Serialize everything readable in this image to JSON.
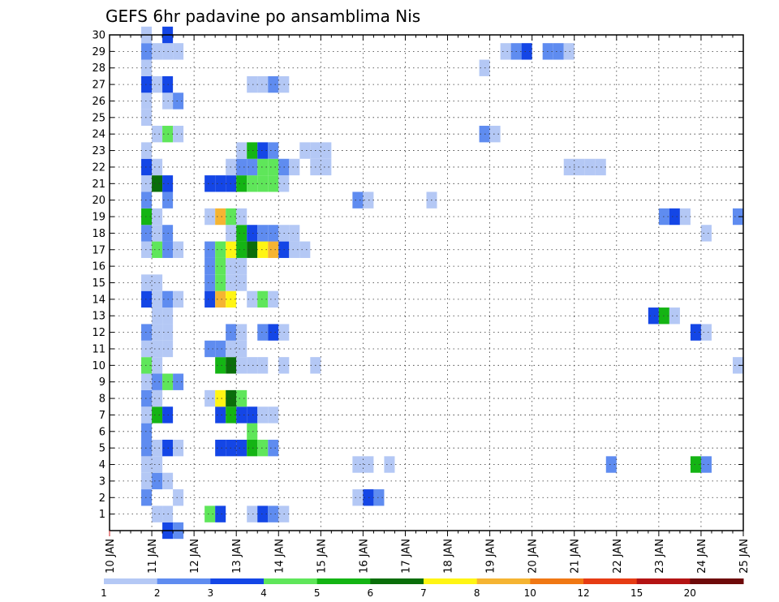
{
  "chart_data": {
    "type": "heatmap",
    "title": "GEFS 6hr padavine po ansamblima Nis",
    "x_ticks": [
      "10 JAN",
      "11 JAN",
      "12 JAN",
      "13 JAN",
      "14 JAN",
      "15 JAN",
      "16 JAN",
      "17 JAN",
      "18 JAN",
      "19 JAN",
      "20 JAN",
      "21 JAN",
      "22 JAN",
      "23 JAN",
      "24 JAN",
      "25 JAN"
    ],
    "y_ticks": [
      "1",
      "2",
      "3",
      "4",
      "5",
      "6",
      "7",
      "8",
      "9",
      "10",
      "11",
      "12",
      "13",
      "14",
      "15",
      "16",
      "17",
      "18",
      "19",
      "20",
      "21",
      "22",
      "23",
      "24",
      "25",
      "26",
      "27",
      "28",
      "29",
      "30"
    ],
    "x_range_days": [
      10,
      25
    ],
    "y_range": [
      0,
      30
    ],
    "grid": true,
    "color_levels": [
      1,
      2,
      3,
      4,
      5,
      6,
      7,
      8,
      10,
      12,
      15,
      20
    ],
    "color_labels": [
      "1",
      "2",
      "3",
      "4",
      "5",
      "6",
      "7",
      "8",
      "10",
      "12",
      "15",
      "20"
    ],
    "colors": [
      "#b4c8f5",
      "#5f8cf0",
      "#1446e6",
      "#5fe65a",
      "#14b414",
      "#0a6e0a",
      "#fff514",
      "#f5b432",
      "#f07814",
      "#e63c14",
      "#b41414",
      "#6e0a0a"
    ],
    "members": [
      {
        "member": 0,
        "cells": [
          [
            11.25,
            2
          ],
          [
            11.5,
            1
          ]
        ]
      },
      {
        "member": 1,
        "cells": [
          [
            11.0,
            0
          ],
          [
            11.25,
            0
          ],
          [
            12.25,
            3
          ],
          [
            12.5,
            2
          ],
          [
            13.25,
            0
          ],
          [
            13.5,
            2
          ],
          [
            13.75,
            1
          ],
          [
            14.0,
            0
          ]
        ]
      },
      {
        "member": 2,
        "cells": [
          [
            10.75,
            1
          ],
          [
            11.5,
            0
          ],
          [
            15.75,
            0
          ],
          [
            16.0,
            2
          ],
          [
            16.25,
            1
          ]
        ]
      },
      {
        "member": 3,
        "cells": [
          [
            10.75,
            0
          ],
          [
            11.0,
            1
          ],
          [
            11.25,
            0
          ]
        ]
      },
      {
        "member": 4,
        "cells": [
          [
            10.75,
            0
          ],
          [
            11.0,
            0
          ],
          [
            15.75,
            0
          ],
          [
            16.0,
            0
          ],
          [
            16.5,
            0
          ],
          [
            21.75,
            1
          ],
          [
            23.75,
            4
          ],
          [
            24.0,
            1
          ]
        ]
      },
      {
        "member": 5,
        "cells": [
          [
            10.75,
            1
          ],
          [
            11.0,
            0
          ],
          [
            11.25,
            2
          ],
          [
            11.5,
            0
          ],
          [
            12.5,
            2
          ],
          [
            12.75,
            2
          ],
          [
            13.0,
            2
          ],
          [
            13.25,
            4
          ],
          [
            13.5,
            3
          ],
          [
            13.75,
            1
          ]
        ]
      },
      {
        "member": 6,
        "cells": [
          [
            10.75,
            1
          ],
          [
            13.25,
            3
          ]
        ]
      },
      {
        "member": 7,
        "cells": [
          [
            10.75,
            0
          ],
          [
            11.0,
            4
          ],
          [
            11.25,
            2
          ],
          [
            12.5,
            2
          ],
          [
            12.75,
            4
          ],
          [
            13.0,
            2
          ],
          [
            13.25,
            2
          ],
          [
            13.5,
            0
          ],
          [
            13.75,
            0
          ]
        ]
      },
      {
        "member": 8,
        "cells": [
          [
            10.75,
            1
          ],
          [
            11.0,
            0
          ],
          [
            12.25,
            0
          ],
          [
            12.5,
            6
          ],
          [
            12.75,
            5
          ],
          [
            13.0,
            3
          ]
        ]
      },
      {
        "member": 9,
        "cells": [
          [
            10.75,
            0
          ],
          [
            11.0,
            1
          ],
          [
            11.25,
            3
          ],
          [
            11.5,
            1
          ]
        ]
      },
      {
        "member": 10,
        "cells": [
          [
            10.75,
            3
          ],
          [
            11.0,
            0
          ],
          [
            12.5,
            4
          ],
          [
            12.75,
            5
          ],
          [
            13.0,
            0
          ],
          [
            13.25,
            0
          ],
          [
            13.5,
            0
          ],
          [
            14.0,
            0
          ],
          [
            14.75,
            0
          ],
          [
            24.75,
            0
          ]
        ]
      },
      {
        "member": 11,
        "cells": [
          [
            10.75,
            0
          ],
          [
            11.0,
            0
          ],
          [
            11.25,
            0
          ],
          [
            12.25,
            1
          ],
          [
            12.5,
            1
          ],
          [
            12.75,
            0
          ],
          [
            13.0,
            0
          ]
        ]
      },
      {
        "member": 12,
        "cells": [
          [
            10.75,
            1
          ],
          [
            11.0,
            0
          ],
          [
            11.25,
            0
          ],
          [
            12.75,
            1
          ],
          [
            13.0,
            0
          ],
          [
            13.5,
            1
          ],
          [
            13.75,
            2
          ],
          [
            14.0,
            0
          ],
          [
            23.75,
            2
          ],
          [
            24.0,
            0
          ]
        ]
      },
      {
        "member": 13,
        "cells": [
          [
            11.0,
            0
          ],
          [
            11.25,
            0
          ],
          [
            22.75,
            2
          ],
          [
            23.0,
            4
          ],
          [
            23.25,
            0
          ]
        ]
      },
      {
        "member": 14,
        "cells": [
          [
            10.75,
            2
          ],
          [
            11.0,
            0
          ],
          [
            11.25,
            1
          ],
          [
            11.5,
            0
          ],
          [
            12.25,
            2
          ],
          [
            12.5,
            7
          ],
          [
            12.75,
            6
          ],
          [
            13.25,
            0
          ],
          [
            13.5,
            3
          ],
          [
            13.75,
            0
          ]
        ]
      },
      {
        "member": 15,
        "cells": [
          [
            10.75,
            0
          ],
          [
            11.0,
            0
          ],
          [
            12.25,
            1
          ],
          [
            12.5,
            3
          ],
          [
            12.75,
            0
          ],
          [
            13.0,
            0
          ]
        ]
      },
      {
        "member": 16,
        "cells": [
          [
            12.25,
            1
          ],
          [
            12.5,
            3
          ],
          [
            12.75,
            0
          ],
          [
            13.0,
            0
          ]
        ]
      },
      {
        "member": 17,
        "cells": [
          [
            10.75,
            0
          ],
          [
            11.0,
            3
          ],
          [
            11.25,
            1
          ],
          [
            11.5,
            0
          ],
          [
            12.25,
            1
          ],
          [
            12.5,
            3
          ],
          [
            12.75,
            6
          ],
          [
            13.0,
            4
          ],
          [
            13.25,
            5
          ],
          [
            13.5,
            6
          ],
          [
            13.75,
            7
          ],
          [
            14.0,
            2
          ],
          [
            14.25,
            0
          ],
          [
            14.5,
            0
          ]
        ]
      },
      {
        "member": 18,
        "cells": [
          [
            10.75,
            1
          ],
          [
            11.0,
            0
          ],
          [
            11.25,
            1
          ],
          [
            12.75,
            0
          ],
          [
            13.0,
            4
          ],
          [
            13.25,
            2
          ],
          [
            13.5,
            1
          ],
          [
            13.75,
            1
          ],
          [
            14.0,
            0
          ],
          [
            14.25,
            0
          ],
          [
            24.0,
            0
          ]
        ]
      },
      {
        "member": 19,
        "cells": [
          [
            10.75,
            4
          ],
          [
            11.0,
            0
          ],
          [
            12.25,
            0
          ],
          [
            12.5,
            7
          ],
          [
            12.75,
            3
          ],
          [
            13.0,
            0
          ],
          [
            23.0,
            1
          ],
          [
            23.25,
            2
          ],
          [
            23.5,
            0
          ],
          [
            24.75,
            1
          ]
        ]
      },
      {
        "member": 20,
        "cells": [
          [
            10.75,
            1
          ],
          [
            11.25,
            1
          ],
          [
            15.75,
            1
          ],
          [
            16.0,
            0
          ],
          [
            17.5,
            0
          ]
        ]
      },
      {
        "member": 21,
        "cells": [
          [
            10.75,
            0
          ],
          [
            11.0,
            5
          ],
          [
            11.25,
            2
          ],
          [
            12.25,
            2
          ],
          [
            12.5,
            2
          ],
          [
            12.75,
            2
          ],
          [
            13.0,
            4
          ],
          [
            13.25,
            3
          ],
          [
            13.5,
            3
          ],
          [
            13.75,
            3
          ],
          [
            14.0,
            0
          ]
        ]
      },
      {
        "member": 22,
        "cells": [
          [
            10.75,
            2
          ],
          [
            11.0,
            0
          ],
          [
            12.75,
            0
          ],
          [
            13.0,
            1
          ],
          [
            13.25,
            1
          ],
          [
            13.5,
            3
          ],
          [
            13.75,
            3
          ],
          [
            14.0,
            1
          ],
          [
            14.25,
            0
          ],
          [
            14.75,
            0
          ],
          [
            15.0,
            0
          ],
          [
            20.75,
            0
          ],
          [
            21.0,
            0
          ],
          [
            21.25,
            0
          ],
          [
            21.5,
            0
          ]
        ]
      },
      {
        "member": 23,
        "cells": [
          [
            10.75,
            0
          ],
          [
            13.0,
            0
          ],
          [
            13.25,
            4
          ],
          [
            13.5,
            2
          ],
          [
            13.75,
            1
          ],
          [
            14.5,
            0
          ],
          [
            14.75,
            0
          ],
          [
            15.0,
            0
          ]
        ]
      },
      {
        "member": 24,
        "cells": [
          [
            11.0,
            0
          ],
          [
            11.25,
            3
          ],
          [
            11.5,
            0
          ],
          [
            18.75,
            1
          ],
          [
            19.0,
            0
          ]
        ]
      },
      {
        "member": 25,
        "cells": [
          [
            10.75,
            0
          ]
        ]
      },
      {
        "member": 26,
        "cells": [
          [
            10.75,
            0
          ],
          [
            11.25,
            0
          ],
          [
            11.5,
            1
          ]
        ]
      },
      {
        "member": 27,
        "cells": [
          [
            10.75,
            2
          ],
          [
            11.0,
            0
          ],
          [
            11.25,
            2
          ],
          [
            13.25,
            0
          ],
          [
            13.5,
            0
          ],
          [
            13.75,
            1
          ],
          [
            14.0,
            0
          ]
        ]
      },
      {
        "member": 28,
        "cells": [
          [
            10.75,
            0
          ],
          [
            18.75,
            0
          ]
        ]
      },
      {
        "member": 29,
        "cells": [
          [
            10.75,
            1
          ],
          [
            11.0,
            0
          ],
          [
            11.25,
            0
          ],
          [
            11.5,
            0
          ],
          [
            19.25,
            0
          ],
          [
            19.5,
            1
          ],
          [
            19.75,
            2
          ],
          [
            20.25,
            1
          ],
          [
            20.5,
            1
          ],
          [
            20.75,
            0
          ]
        ]
      },
      {
        "member": 30,
        "cells": [
          [
            10.75,
            0
          ],
          [
            11.25,
            2
          ]
        ]
      }
    ]
  }
}
